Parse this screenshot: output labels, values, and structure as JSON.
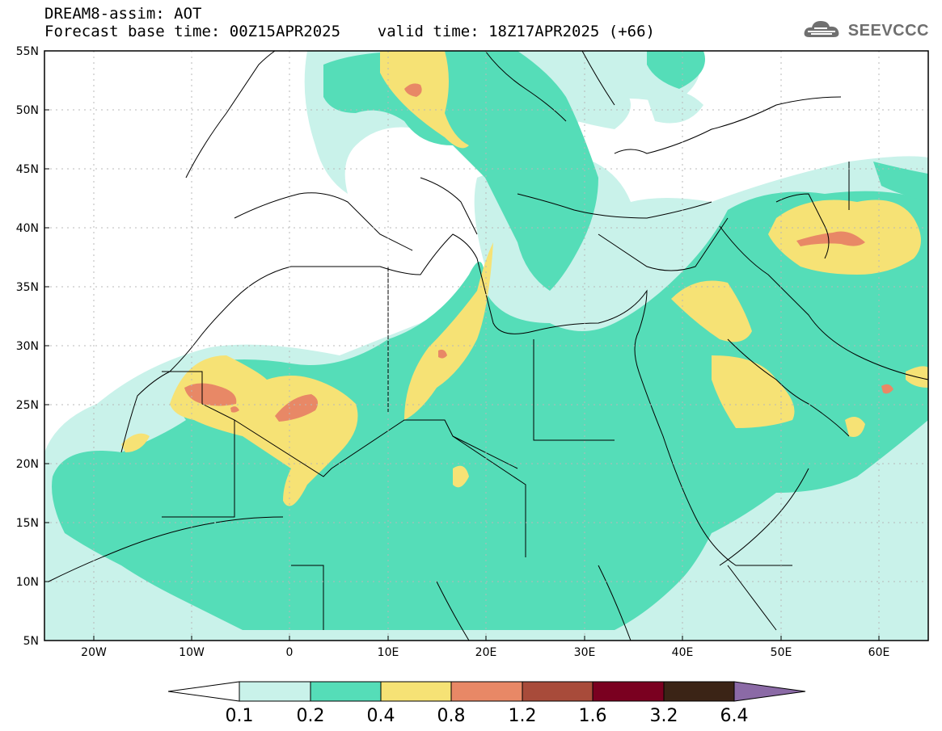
{
  "header": {
    "title": "DREAM8-assim: AOT",
    "subtitle": "Forecast base time: 00Z15APR2025    valid time: 18Z17APR2025 (+66)"
  },
  "logo": {
    "text": "SEEVCCC",
    "icon": "cloud-icon"
  },
  "axes": {
    "lat_labels": [
      "55N",
      "50N",
      "45N",
      "40N",
      "35N",
      "30N",
      "25N",
      "20N",
      "15N",
      "10N",
      "5N"
    ],
    "lon_labels": [
      "20W",
      "10W",
      "0",
      "10E",
      "20E",
      "30E",
      "40E",
      "50E",
      "60E"
    ]
  },
  "legend": {
    "labels": [
      "0.1",
      "0.2",
      "0.4",
      "0.8",
      "1.2",
      "1.6",
      "3.2",
      "6.4"
    ],
    "colors": [
      "#ffffff",
      "#c9f2ea",
      "#55ddb8",
      "#f6e275",
      "#e88866",
      "#a84b3a",
      "#7a0020",
      "#3b2416",
      "#8b6aa6"
    ]
  },
  "chart_data": {
    "type": "heatmap",
    "variable": "AOT",
    "lon_range": [
      -25,
      65
    ],
    "lat_range": [
      5,
      55
    ],
    "levels": [
      0.1,
      0.2,
      0.4,
      0.8,
      1.2,
      1.6,
      3.2,
      6.4
    ],
    "colors": [
      "#c9f2ea",
      "#55ddb8",
      "#f6e275",
      "#e88866",
      "#a84b3a",
      "#7a0020",
      "#3b2416",
      "#8b6aa6"
    ],
    "grid": true
  }
}
